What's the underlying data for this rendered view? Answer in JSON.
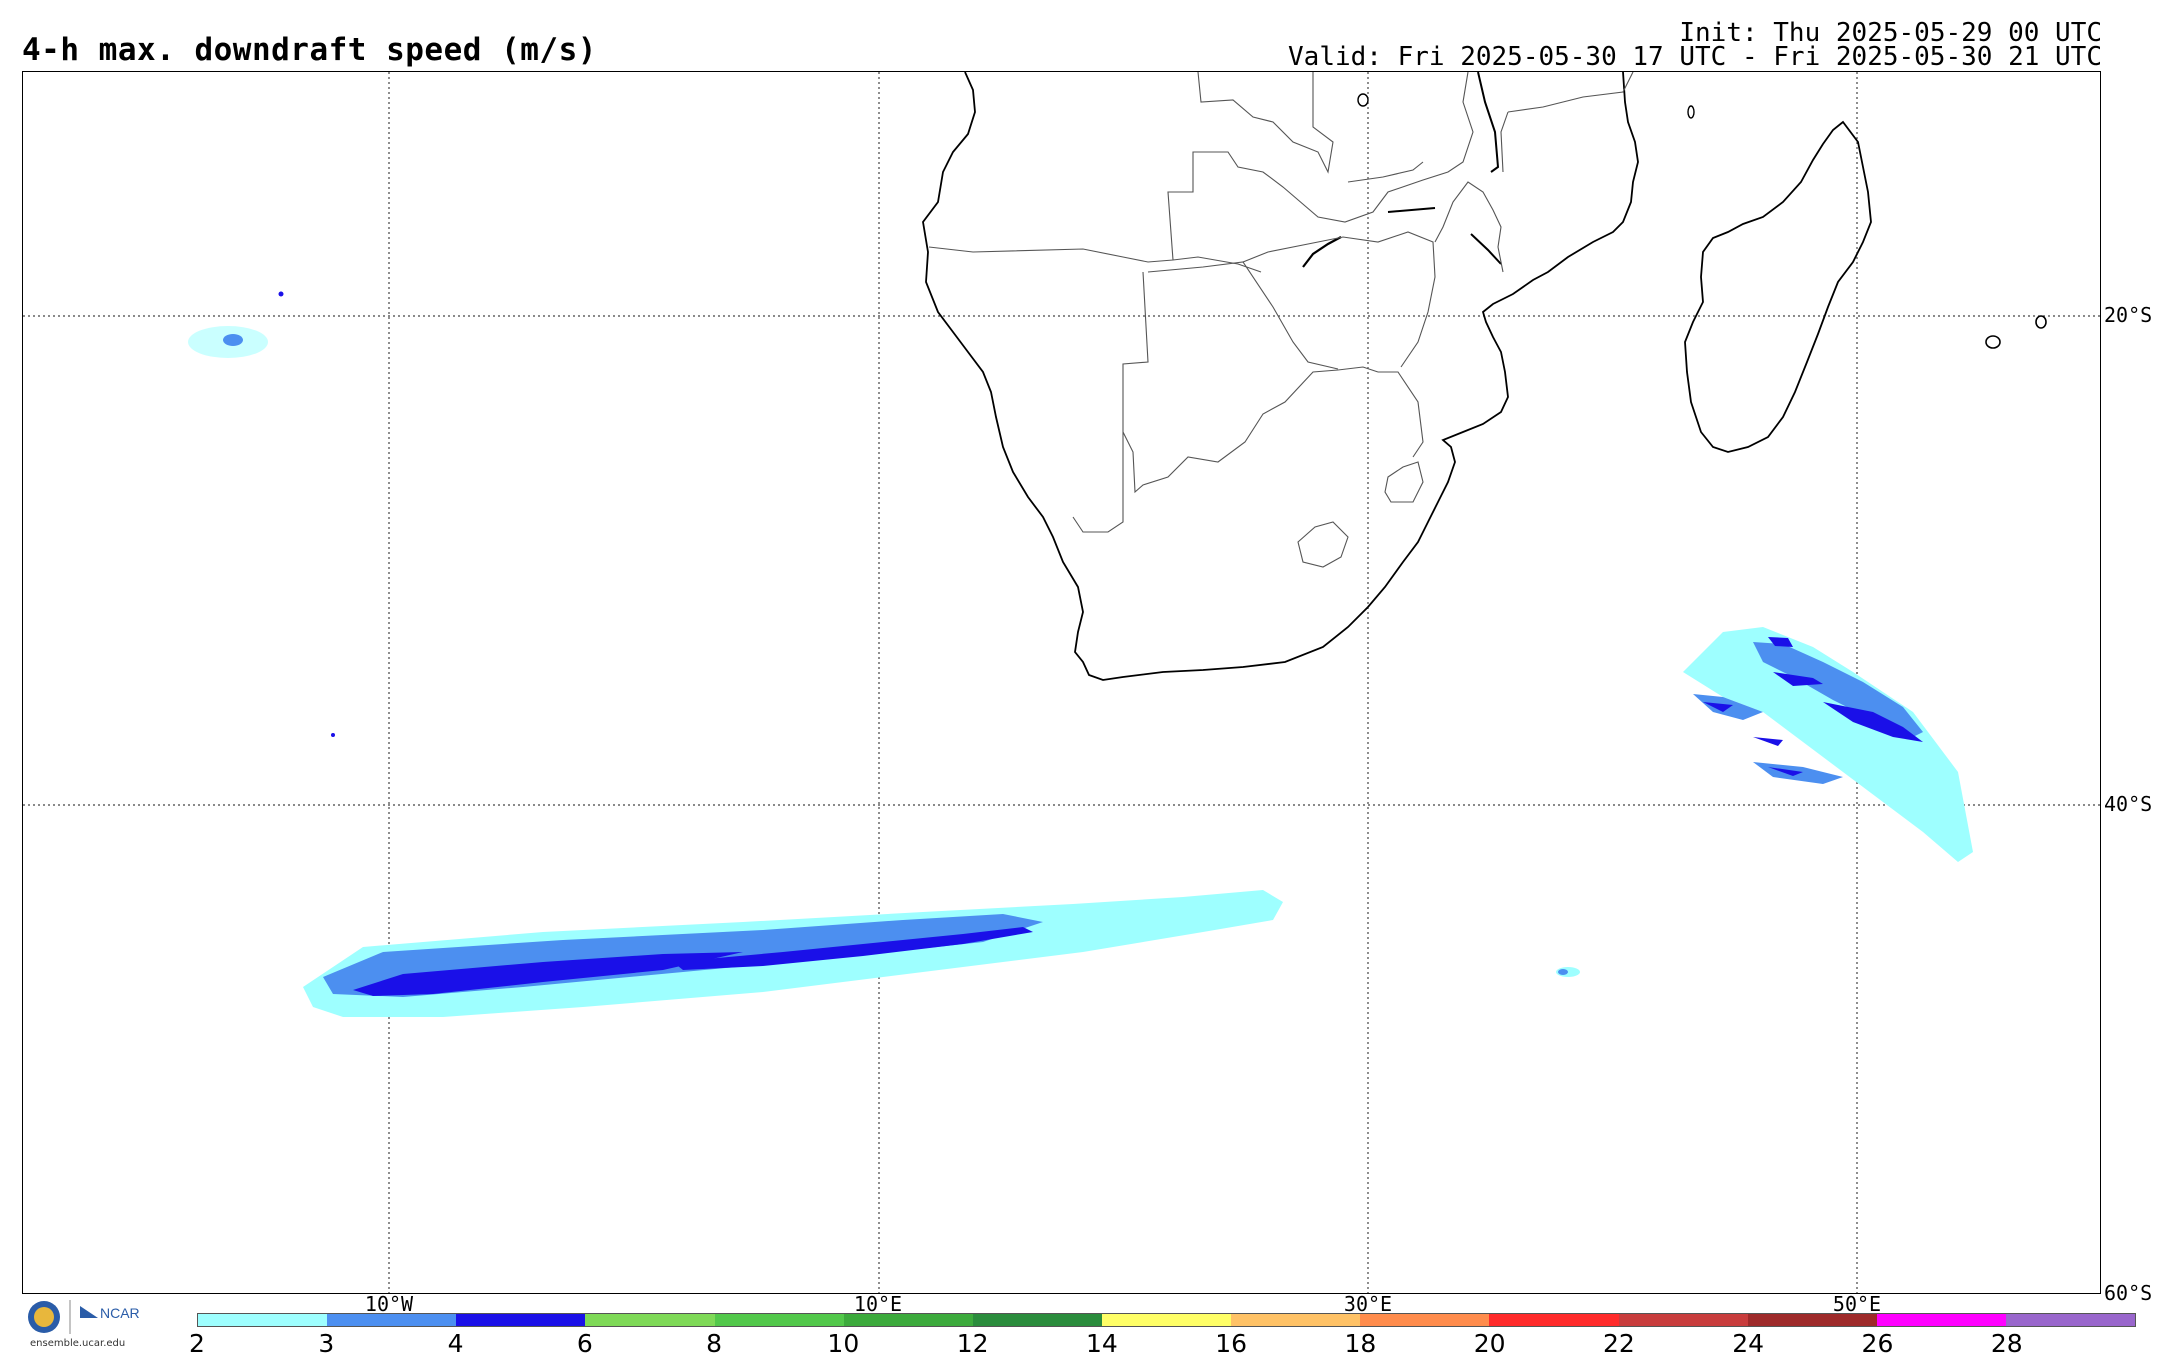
{
  "title": "4-h max. downdraft speed (m/s)",
  "init_line": "Init: Thu 2025-05-29 00 UTC",
  "valid_line": "Valid: Fri 2025-05-30 17 UTC - Fri 2025-05-30 21 UTC",
  "latitude_labels": [
    "20°S",
    "40°S",
    "60°S"
  ],
  "longitude_labels": [
    "10°W",
    "10°E",
    "30°E",
    "50°E"
  ],
  "logo_text": "ensemble.ucar.edu",
  "logo_brand": "NCAR",
  "colorbar": {
    "colors": [
      "#9effff",
      "#4c8ff0",
      "#1a10e8",
      "#7ed957",
      "#52c84a",
      "#3caa3c",
      "#2a8c3c",
      "#ffff66",
      "#ffc266",
      "#ff8c4c",
      "#ff2a2a",
      "#c83c3c",
      "#9e2a2a",
      "#ff00ff",
      "#9966cc"
    ],
    "ticks": [
      "2",
      "3",
      "4",
      "6",
      "8",
      "10",
      "12",
      "14",
      "16",
      "18",
      "20",
      "22",
      "24",
      "26",
      "28"
    ]
  }
}
